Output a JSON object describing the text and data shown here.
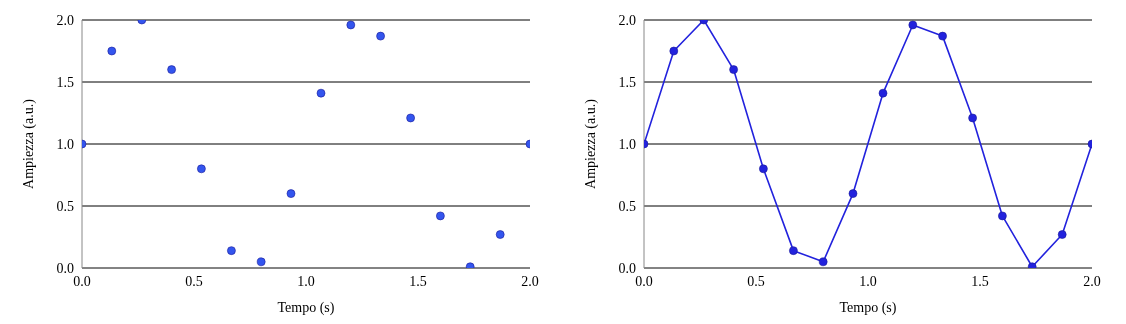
{
  "chart_data": [
    {
      "type": "scatter",
      "xlabel": "Tempo (s)",
      "ylabel": "Ampiezza (a.u.)",
      "xlim": [
        0,
        2
      ],
      "xticks": [
        {
          "value": 0,
          "label": "0.0"
        },
        {
          "value": 0.5,
          "label": "0.5"
        },
        {
          "value": 1,
          "label": "1.0"
        },
        {
          "value": 1.5,
          "label": "1.5"
        },
        {
          "value": 2,
          "label": "2.0"
        }
      ],
      "ylim": [
        0,
        2
      ],
      "yticks": [
        {
          "value": 0,
          "label": "0.0"
        },
        {
          "value": 0.5,
          "label": "0.5"
        },
        {
          "value": 1,
          "label": "1.0"
        },
        {
          "value": 1.5,
          "label": "1.5"
        },
        {
          "value": 2,
          "label": "2.0"
        }
      ],
      "grid": "y",
      "marker": "circle",
      "x": [
        0,
        0.133,
        0.267,
        0.4,
        0.533,
        0.667,
        0.8,
        0.933,
        1.067,
        1.2,
        1.333,
        1.467,
        1.6,
        1.733,
        1.867,
        2.0
      ],
      "series": [
        {
          "color": "#3355ee",
          "values": [
            1.0,
            1.75,
            2.0,
            1.6,
            0.8,
            0.14,
            0.05,
            0.6,
            1.41,
            1.96,
            1.87,
            1.21,
            0.42,
            0.01,
            0.27,
            1.0
          ]
        }
      ]
    },
    {
      "type": "line",
      "xlabel": "Tempo (s)",
      "ylabel": "Ampiezza (a.u.)",
      "xlim": [
        0,
        2
      ],
      "xticks": [
        {
          "value": 0,
          "label": "0.0"
        },
        {
          "value": 0.5,
          "label": "0.5"
        },
        {
          "value": 1,
          "label": "1.0"
        },
        {
          "value": 1.5,
          "label": "1.5"
        },
        {
          "value": 2,
          "label": "2.0"
        }
      ],
      "ylim": [
        0,
        2
      ],
      "yticks": [
        {
          "value": 0,
          "label": "0.0"
        },
        {
          "value": 0.5,
          "label": "0.5"
        },
        {
          "value": 1,
          "label": "1.0"
        },
        {
          "value": 1.5,
          "label": "1.5"
        },
        {
          "value": 2,
          "label": "2.0"
        }
      ],
      "grid": "y",
      "marker": "circle",
      "line_style": "solid",
      "x": [
        0,
        0.133,
        0.267,
        0.4,
        0.533,
        0.667,
        0.8,
        0.933,
        1.067,
        1.2,
        1.333,
        1.467,
        1.6,
        1.733,
        1.867,
        2.0
      ],
      "series": [
        {
          "color": "#2222dd",
          "values": [
            1.0,
            1.75,
            2.0,
            1.6,
            0.8,
            0.14,
            0.05,
            0.6,
            1.41,
            1.96,
            1.87,
            1.21,
            0.42,
            0.01,
            0.27,
            1.0
          ]
        }
      ]
    }
  ]
}
